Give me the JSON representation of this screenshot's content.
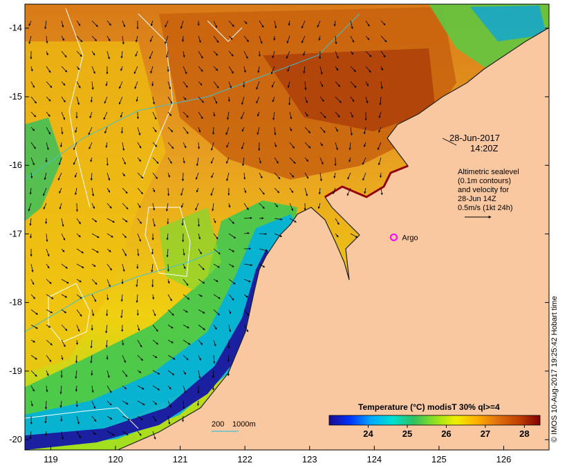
{
  "map": {
    "longitude_ticks": [
      "119",
      "120",
      "121",
      "122",
      "123",
      "124",
      "125",
      "126"
    ],
    "latitude_ticks": [
      "-14",
      "-15",
      "-16",
      "-17",
      "-18",
      "-19",
      "-20"
    ],
    "lon_range": [
      118.6,
      126.7
    ],
    "lat_range": [
      -20.15,
      -13.65
    ],
    "land_color": "#fac8a0",
    "annotation": {
      "date": "28-Jun-2017",
      "time": "14:20Z",
      "lines": [
        "Altimetric sealevel",
        "(0.1m contours)",
        "and velocity for",
        "28-Jun 14Z",
        "0.5m/s (1kt 24h)"
      ]
    },
    "argo_label": "Argo",
    "argo_position": {
      "lon": 124.3,
      "lat": -17.05
    },
    "argo_color": "#ff00ff",
    "depth_legend": {
      "first": "200",
      "second": "1000m"
    },
    "credit": "© IMOS 10-Aug-2017 19:25:42 Hobart time"
  },
  "colorbar": {
    "title": "Temperature (°C) modisT 30% ql>=4",
    "range": [
      23.0,
      28.4
    ],
    "ticks": [
      "24",
      "25",
      "26",
      "27",
      "28"
    ],
    "colors": [
      "#1a0a8c",
      "#0033ff",
      "#00aaff",
      "#00e0d0",
      "#30c060",
      "#90e020",
      "#f0f000",
      "#ffb000",
      "#e07010",
      "#c04000",
      "#800000"
    ]
  }
}
